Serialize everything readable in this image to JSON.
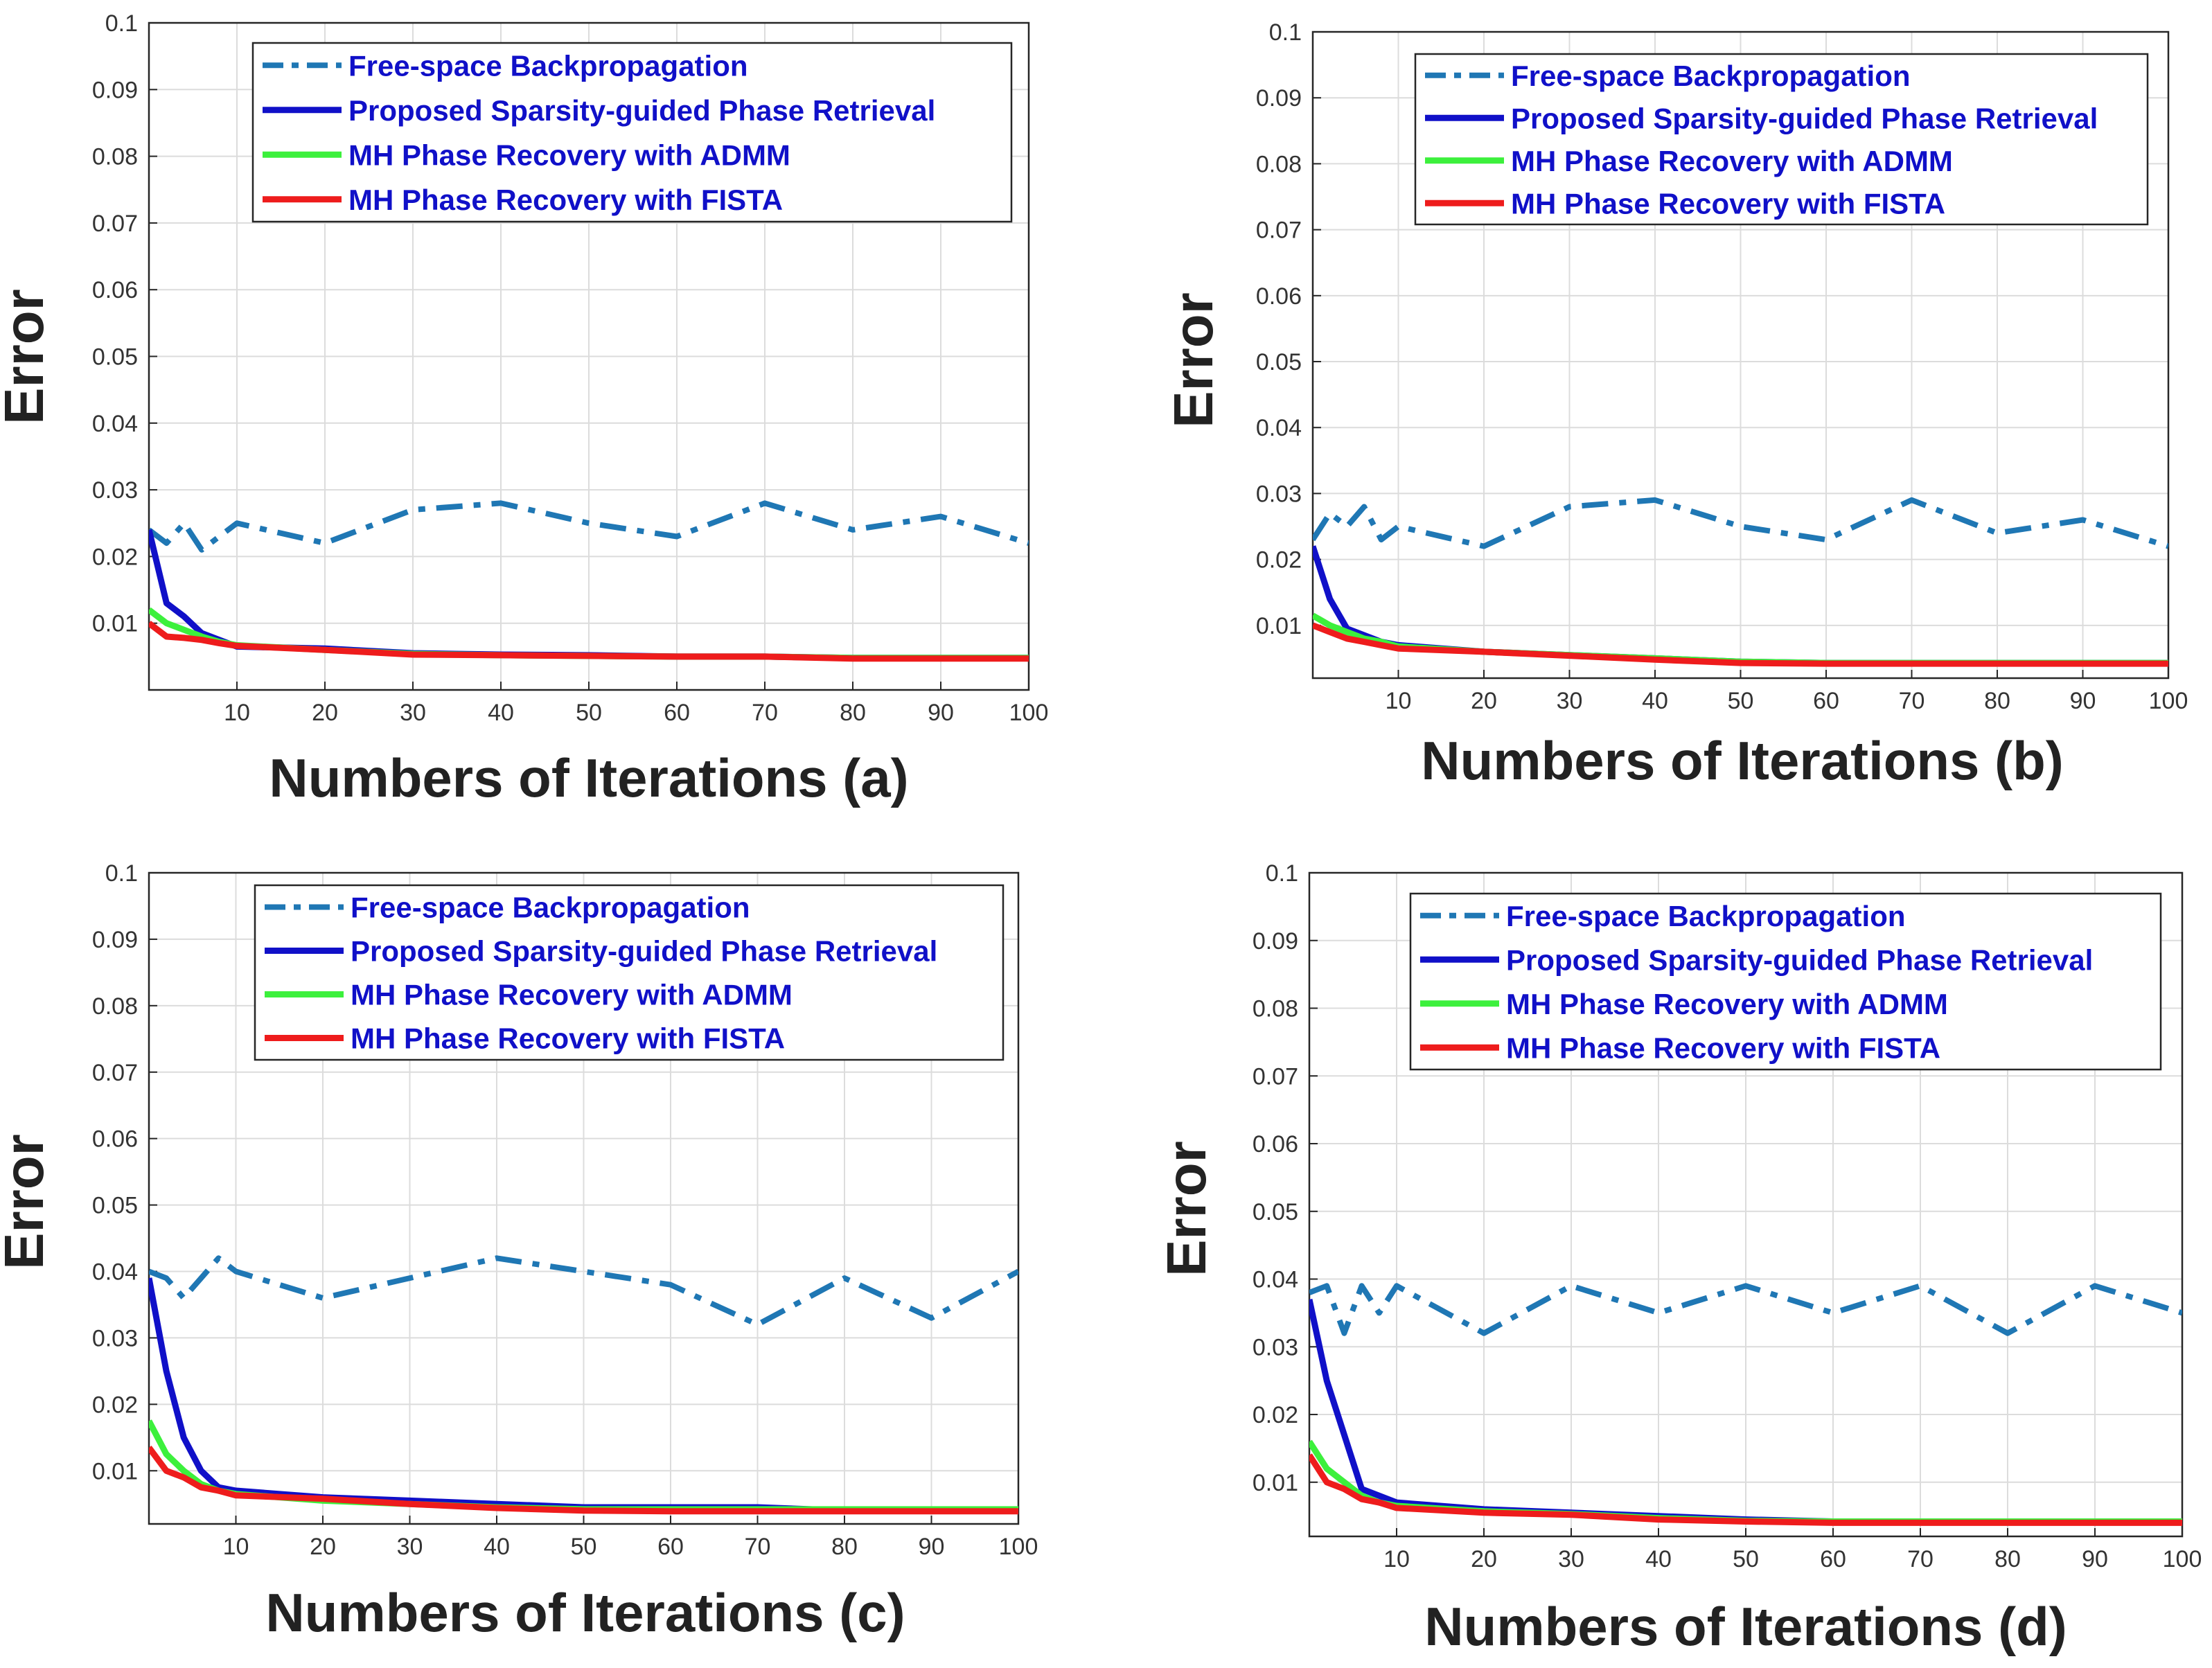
{
  "colors": {
    "free_space": "#1f77b4",
    "proposed": "#1010c8",
    "admm": "#3cf03c",
    "fista": "#ee1c1c",
    "grid": "#dcdcdc",
    "axis": "#262626"
  },
  "chart_data": [
    {
      "type": "line",
      "panel": "a",
      "xlabel": "Numbers of Iterations (a)",
      "ylabel": "Error",
      "xlim": [
        0,
        100
      ],
      "ylim": [
        0.0,
        0.1
      ],
      "grid": true,
      "legend_position": "top",
      "x_ticks": [
        10,
        20,
        30,
        40,
        50,
        60,
        70,
        80,
        90,
        100
      ],
      "y_ticks": [
        0.01,
        0.02,
        0.03,
        0.04,
        0.05,
        0.06,
        0.07,
        0.08,
        0.09,
        0.1
      ],
      "x_tick_labels": [
        "10",
        "20",
        "30",
        "40",
        "50",
        "60",
        "70",
        "80",
        "90",
        "100"
      ],
      "y_tick_labels": [
        "0.01",
        "0.02",
        "0.03",
        "0.04",
        "0.05",
        "0.06",
        "0.07",
        "0.08",
        "0.09",
        "0.1"
      ],
      "series": [
        {
          "name": "Free-space Backpropagation",
          "style": "dashdot",
          "color_key": "free_space",
          "x": [
            0,
            2,
            4,
            6,
            8,
            10,
            20,
            30,
            40,
            50,
            60,
            70,
            80,
            90,
            100
          ],
          "y": [
            0.024,
            0.022,
            0.025,
            0.021,
            0.023,
            0.025,
            0.022,
            0.027,
            0.028,
            0.025,
            0.023,
            0.028,
            0.024,
            0.026,
            0.022
          ]
        },
        {
          "name": "Proposed Sparsity-guided Phase Retrieval",
          "style": "solid",
          "color_key": "proposed",
          "x": [
            0,
            2,
            4,
            6,
            8,
            10,
            20,
            30,
            40,
            50,
            60,
            70,
            80,
            90,
            100
          ],
          "y": [
            0.024,
            0.013,
            0.011,
            0.0085,
            0.0075,
            0.0065,
            0.0062,
            0.0055,
            0.0053,
            0.0052,
            0.005,
            0.005,
            0.0048,
            0.0048,
            0.0048
          ]
        },
        {
          "name": "MH Phase Recovery with ADMM",
          "style": "solid",
          "color_key": "admm",
          "x": [
            0,
            2,
            4,
            6,
            8,
            10,
            20,
            30,
            40,
            50,
            60,
            70,
            80,
            90,
            100
          ],
          "y": [
            0.012,
            0.01,
            0.009,
            0.008,
            0.0072,
            0.0067,
            0.006,
            0.0054,
            0.0052,
            0.0051,
            0.005,
            0.005,
            0.0048,
            0.0048,
            0.0048
          ]
        },
        {
          "name": "MH Phase Recovery with FISTA",
          "style": "solid",
          "color_key": "fista",
          "x": [
            0,
            2,
            4,
            6,
            8,
            10,
            20,
            30,
            40,
            50,
            60,
            70,
            80,
            90,
            100
          ],
          "y": [
            0.01,
            0.008,
            0.0078,
            0.0075,
            0.007,
            0.0066,
            0.006,
            0.0053,
            0.0052,
            0.0051,
            0.005,
            0.005,
            0.0047,
            0.0047,
            0.0047
          ]
        }
      ]
    },
    {
      "type": "line",
      "panel": "b",
      "xlabel": "Numbers of Iterations (b)",
      "ylabel": "Error",
      "xlim": [
        0,
        100
      ],
      "ylim": [
        0.002,
        0.1
      ],
      "grid": true,
      "legend_position": "top-right",
      "x_ticks": [
        10,
        20,
        30,
        40,
        50,
        60,
        70,
        80,
        90,
        100
      ],
      "y_ticks": [
        0.01,
        0.02,
        0.03,
        0.04,
        0.05,
        0.06,
        0.07,
        0.08,
        0.09,
        0.1
      ],
      "x_tick_labels": [
        "10",
        "20",
        "30",
        "40",
        "50",
        "60",
        "70",
        "80",
        "90",
        "100"
      ],
      "y_tick_labels": [
        "0.01",
        "0.02",
        "0.03",
        "0.04",
        "0.05",
        "0.06",
        "0.07",
        "0.08",
        "0.09",
        "0.1"
      ],
      "series": [
        {
          "name": "Free-space Backpropagation",
          "style": "dashdot",
          "color_key": "free_space",
          "x": [
            0,
            2,
            4,
            6,
            8,
            10,
            20,
            30,
            40,
            50,
            60,
            70,
            80,
            90,
            100
          ],
          "y": [
            0.023,
            0.027,
            0.025,
            0.028,
            0.023,
            0.025,
            0.022,
            0.028,
            0.029,
            0.025,
            0.023,
            0.029,
            0.024,
            0.026,
            0.022
          ]
        },
        {
          "name": "Proposed Sparsity-guided Phase Retrieval",
          "style": "solid",
          "color_key": "proposed",
          "x": [
            0,
            2,
            4,
            6,
            8,
            10,
            20,
            30,
            40,
            50,
            60,
            70,
            80,
            90,
            100
          ],
          "y": [
            0.022,
            0.014,
            0.0095,
            0.0085,
            0.0075,
            0.007,
            0.006,
            0.0055,
            0.005,
            0.0045,
            0.0043,
            0.0043,
            0.0043,
            0.0043,
            0.0043
          ]
        },
        {
          "name": "MH Phase Recovery with ADMM",
          "style": "solid",
          "color_key": "admm",
          "x": [
            0,
            2,
            4,
            6,
            8,
            10,
            20,
            30,
            40,
            50,
            60,
            70,
            80,
            90,
            100
          ],
          "y": [
            0.0115,
            0.01,
            0.009,
            0.008,
            0.0075,
            0.0068,
            0.006,
            0.0055,
            0.005,
            0.0045,
            0.0043,
            0.0043,
            0.0043,
            0.0043,
            0.0043
          ]
        },
        {
          "name": "MH Phase Recovery with FISTA",
          "style": "solid",
          "color_key": "fista",
          "x": [
            0,
            2,
            4,
            6,
            8,
            10,
            20,
            30,
            40,
            50,
            60,
            70,
            80,
            90,
            100
          ],
          "y": [
            0.01,
            0.009,
            0.008,
            0.0075,
            0.007,
            0.0065,
            0.006,
            0.0054,
            0.0048,
            0.0043,
            0.0042,
            0.0042,
            0.0042,
            0.0042,
            0.0042
          ]
        }
      ]
    },
    {
      "type": "line",
      "panel": "c",
      "xlabel": "Numbers of Iterations (c)",
      "ylabel": "Error",
      "xlim": [
        0,
        100
      ],
      "ylim": [
        0.002,
        0.1
      ],
      "grid": true,
      "legend_position": "top",
      "x_ticks": [
        10,
        20,
        30,
        40,
        50,
        60,
        70,
        80,
        90,
        100
      ],
      "y_ticks": [
        0.01,
        0.02,
        0.03,
        0.04,
        0.05,
        0.06,
        0.07,
        0.08,
        0.09,
        0.1
      ],
      "x_tick_labels": [
        "10",
        "20",
        "30",
        "40",
        "50",
        "60",
        "70",
        "80",
        "90",
        "100"
      ],
      "y_tick_labels": [
        "0.01",
        "0.02",
        "0.03",
        "0.04",
        "0.05",
        "0.06",
        "0.07",
        "0.08",
        "0.09",
        "0.1"
      ],
      "series": [
        {
          "name": "Free-space Backpropagation",
          "style": "dashdot",
          "color_key": "free_space",
          "x": [
            0,
            2,
            4,
            6,
            8,
            10,
            20,
            30,
            40,
            50,
            60,
            70,
            80,
            90,
            100
          ],
          "y": [
            0.04,
            0.039,
            0.036,
            0.039,
            0.042,
            0.04,
            0.036,
            0.039,
            0.042,
            0.04,
            0.038,
            0.032,
            0.039,
            0.033,
            0.04
          ]
        },
        {
          "name": "Proposed Sparsity-guided Phase Retrieval",
          "style": "solid",
          "color_key": "proposed",
          "x": [
            0,
            2,
            4,
            6,
            8,
            10,
            20,
            30,
            40,
            50,
            60,
            70,
            80,
            90,
            100
          ],
          "y": [
            0.039,
            0.025,
            0.015,
            0.01,
            0.0075,
            0.007,
            0.006,
            0.0055,
            0.005,
            0.0045,
            0.0045,
            0.0045,
            0.004,
            0.004,
            0.004
          ]
        },
        {
          "name": "MH Phase Recovery with ADMM",
          "style": "solid",
          "color_key": "admm",
          "x": [
            0,
            2,
            4,
            6,
            8,
            10,
            20,
            30,
            40,
            50,
            60,
            70,
            80,
            90,
            100
          ],
          "y": [
            0.0175,
            0.0125,
            0.01,
            0.008,
            0.007,
            0.0065,
            0.0055,
            0.005,
            0.0045,
            0.0042,
            0.0042,
            0.0042,
            0.0042,
            0.0042,
            0.0042
          ]
        },
        {
          "name": "MH Phase Recovery with FISTA",
          "style": "solid",
          "color_key": "fista",
          "x": [
            0,
            2,
            4,
            6,
            8,
            10,
            20,
            30,
            40,
            50,
            60,
            70,
            80,
            90,
            100
          ],
          "y": [
            0.0135,
            0.01,
            0.009,
            0.0075,
            0.007,
            0.0063,
            0.0058,
            0.005,
            0.0044,
            0.004,
            0.0039,
            0.0039,
            0.0039,
            0.0039,
            0.0039
          ]
        }
      ]
    },
    {
      "type": "line",
      "panel": "d",
      "xlabel": "Numbers of Iterations (d)",
      "ylabel": "Error",
      "xlim": [
        0,
        100
      ],
      "ylim": [
        0.002,
        0.1
      ],
      "grid": true,
      "legend_position": "top-right",
      "x_ticks": [
        10,
        20,
        30,
        40,
        50,
        60,
        70,
        80,
        90,
        100
      ],
      "y_ticks": [
        0.01,
        0.02,
        0.03,
        0.04,
        0.05,
        0.06,
        0.07,
        0.08,
        0.09,
        0.1
      ],
      "x_tick_labels": [
        "10",
        "20",
        "30",
        "40",
        "50",
        "60",
        "70",
        "80",
        "90",
        "100"
      ],
      "y_tick_labels": [
        "0.01",
        "0.02",
        "0.03",
        "0.04",
        "0.05",
        "0.06",
        "0.07",
        "0.08",
        "0.09",
        "0.1"
      ],
      "series": [
        {
          "name": "Free-space Backpropagation",
          "style": "dashdot",
          "color_key": "free_space",
          "x": [
            0,
            2,
            4,
            6,
            8,
            10,
            20,
            30,
            40,
            50,
            60,
            70,
            80,
            90,
            100
          ],
          "y": [
            0.038,
            0.039,
            0.032,
            0.039,
            0.035,
            0.039,
            0.032,
            0.039,
            0.035,
            0.039,
            0.035,
            0.039,
            0.032,
            0.039,
            0.035
          ]
        },
        {
          "name": "Proposed Sparsity-guided Phase Retrieval",
          "style": "solid",
          "color_key": "proposed",
          "x": [
            0,
            2,
            4,
            6,
            8,
            10,
            20,
            30,
            40,
            50,
            60,
            70,
            80,
            90,
            100
          ],
          "y": [
            0.037,
            0.025,
            0.017,
            0.009,
            0.008,
            0.007,
            0.006,
            0.0055,
            0.005,
            0.0045,
            0.0042,
            0.0042,
            0.0042,
            0.0042,
            0.0042
          ]
        },
        {
          "name": "MH Phase Recovery with ADMM",
          "style": "solid",
          "color_key": "admm",
          "x": [
            0,
            2,
            4,
            6,
            8,
            10,
            20,
            30,
            40,
            50,
            60,
            70,
            80,
            90,
            100
          ],
          "y": [
            0.016,
            0.012,
            0.01,
            0.008,
            0.007,
            0.0065,
            0.0057,
            0.0053,
            0.0047,
            0.0043,
            0.0042,
            0.0042,
            0.0042,
            0.0042,
            0.0042
          ]
        },
        {
          "name": "MH Phase Recovery with FISTA",
          "style": "solid",
          "color_key": "fista",
          "x": [
            0,
            2,
            4,
            6,
            8,
            10,
            20,
            30,
            40,
            50,
            60,
            70,
            80,
            90,
            100
          ],
          "y": [
            0.014,
            0.01,
            0.009,
            0.0075,
            0.007,
            0.0062,
            0.0055,
            0.0052,
            0.0045,
            0.0042,
            0.004,
            0.004,
            0.004,
            0.004,
            0.004
          ]
        }
      ]
    }
  ]
}
